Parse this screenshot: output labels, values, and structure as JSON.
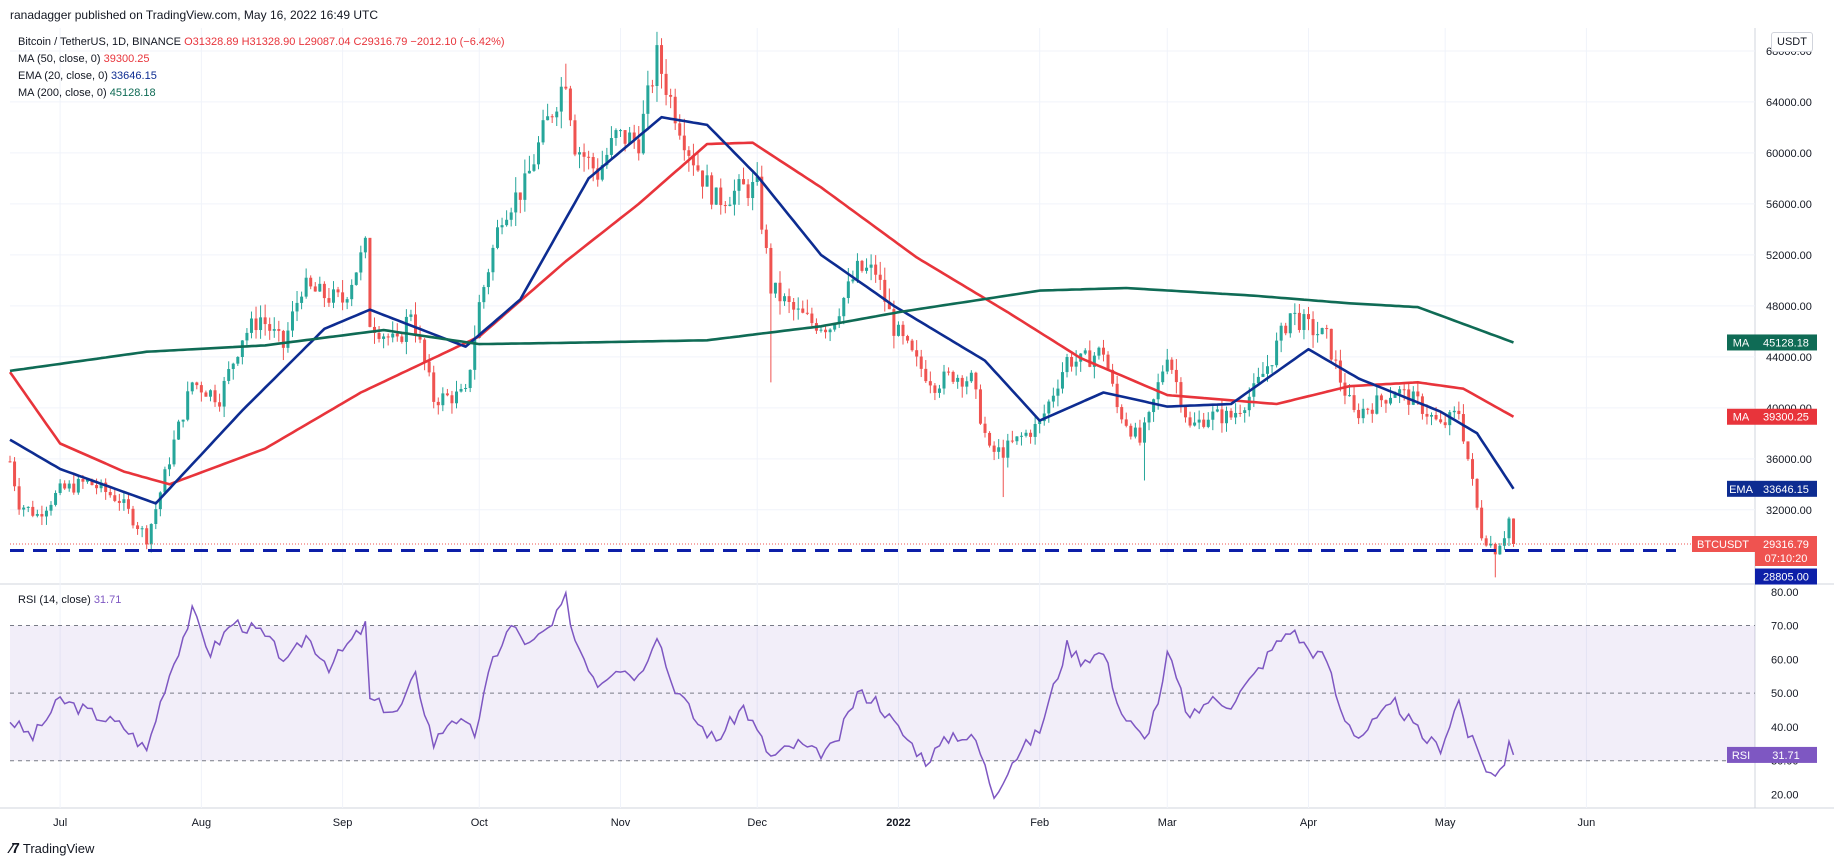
{
  "header": {
    "published": "ranadagger published on TradingView.com, May 16, 2022 16:49 UTC",
    "currency": "USDT",
    "symbol": "Bitcoin / TetherUS, 1D, BINANCE",
    "ohlc": "O31328.89 H31328.90 L29087.04 C29316.79 −2012.10 (−6.42%)",
    "indicators": [
      {
        "label": "MA (50, close, 0)",
        "value": "39300.25",
        "color": "#e8343b"
      },
      {
        "label": "EMA (20, close, 0)",
        "value": "33646.15",
        "color": "#0d2c91"
      },
      {
        "label": "MA (200, close, 0)",
        "value": "45128.18",
        "color": "#0f6b55"
      }
    ],
    "rsi_label": "RSI (14, close)",
    "rsi_value": "31.71"
  },
  "footer": {
    "brand": "TradingView"
  },
  "colors": {
    "up": "#26a69a",
    "down": "#ef5350",
    "ema20": "#0d2c91",
    "ma50": "#e8343b",
    "ma200": "#0f6b55",
    "rsi": "#7e57c2",
    "support": "#0d1fa8"
  },
  "chart_data": [
    {
      "type": "candlestick",
      "title": "",
      "y_ticks": [
        32000,
        36000,
        40000,
        44000,
        48000,
        52000,
        56000,
        60000,
        64000,
        68000
      ],
      "y_tick_labels": [
        "32000.00",
        "36000.00",
        "40000.00",
        "44000.00",
        "48000.00",
        "52000.00",
        "56000.00",
        "60000.00",
        "64000.00",
        "68000.00"
      ],
      "ylim": [
        26100,
        69800
      ],
      "x_labels": [
        {
          "label": "Jul",
          "date": "2021-07-01"
        },
        {
          "label": "Aug",
          "date": "2021-08-01"
        },
        {
          "label": "Sep",
          "date": "2021-09-01"
        },
        {
          "label": "Oct",
          "date": "2021-10-01"
        },
        {
          "label": "Nov",
          "date": "2021-11-01"
        },
        {
          "label": "Dec",
          "date": "2021-12-01"
        },
        {
          "label": "2022",
          "date": "2022-01-01"
        },
        {
          "label": "Feb",
          "date": "2022-02-01"
        },
        {
          "label": "Mar",
          "date": "2022-03-01"
        },
        {
          "label": "Apr",
          "date": "2022-04-01"
        },
        {
          "label": "May",
          "date": "2022-05-01"
        },
        {
          "label": "Jun",
          "date": "2022-06-01"
        }
      ],
      "x_range": [
        "2021-06-20",
        "2022-07-08"
      ],
      "price_path": [
        [
          "2021-06-20",
          35800
        ],
        [
          "2021-06-22",
          32500
        ],
        [
          "2021-06-26",
          31600
        ],
        [
          "2021-07-01",
          33500
        ],
        [
          "2021-07-07",
          34200
        ],
        [
          "2021-07-14",
          32800
        ],
        [
          "2021-07-20",
          29800
        ],
        [
          "2021-07-22",
          32100
        ],
        [
          "2021-07-26",
          37300
        ],
        [
          "2021-07-30",
          42000
        ],
        [
          "2021-08-05",
          40800
        ],
        [
          "2021-08-10",
          45600
        ],
        [
          "2021-08-14",
          47100
        ],
        [
          "2021-08-19",
          44800
        ],
        [
          "2021-08-23",
          49500
        ],
        [
          "2021-08-28",
          48800
        ],
        [
          "2021-09-01",
          48400
        ],
        [
          "2021-09-06",
          52600
        ],
        [
          "2021-09-07",
          46800
        ],
        [
          "2021-09-13",
          44900
        ],
        [
          "2021-09-16",
          47700
        ],
        [
          "2021-09-21",
          40700
        ],
        [
          "2021-09-28",
          41000
        ],
        [
          "2021-10-01",
          48100
        ],
        [
          "2021-10-06",
          55300
        ],
        [
          "2021-10-11",
          57400
        ],
        [
          "2021-10-15",
          61600
        ],
        [
          "2021-10-20",
          66000
        ],
        [
          "2021-10-22",
          60700
        ],
        [
          "2021-10-27",
          58400
        ],
        [
          "2021-10-31",
          61300
        ],
        [
          "2021-11-05",
          61000
        ],
        [
          "2021-11-09",
          67500
        ],
        [
          "2021-11-12",
          64200
        ],
        [
          "2021-11-16",
          60300
        ],
        [
          "2021-11-19",
          58100
        ],
        [
          "2021-11-22",
          56300
        ],
        [
          "2021-11-28",
          57200
        ],
        [
          "2021-12-01",
          57200
        ],
        [
          "2021-12-04",
          49400
        ],
        [
          "2021-12-09",
          47600
        ],
        [
          "2021-12-13",
          46700
        ],
        [
          "2021-12-17",
          46400
        ],
        [
          "2021-12-23",
          50800
        ],
        [
          "2021-12-27",
          50700
        ],
        [
          "2021-12-31",
          46300
        ],
        [
          "2022-01-05",
          43500
        ],
        [
          "2022-01-09",
          41900
        ],
        [
          "2022-01-13",
          42600
        ],
        [
          "2022-01-17",
          42200
        ],
        [
          "2022-01-21",
          36500
        ],
        [
          "2022-01-24",
          36600
        ],
        [
          "2022-01-28",
          37700
        ],
        [
          "2022-02-01",
          38700
        ],
        [
          "2022-02-07",
          43800
        ],
        [
          "2022-02-10",
          43600
        ],
        [
          "2022-02-15",
          44500
        ],
        [
          "2022-02-18",
          40000
        ],
        [
          "2022-02-23",
          37300
        ],
        [
          "2022-02-25",
          39100
        ],
        [
          "2022-03-01",
          44400
        ],
        [
          "2022-03-06",
          38400
        ],
        [
          "2022-03-10",
          39400
        ],
        [
          "2022-03-15",
          39300
        ],
        [
          "2022-03-20",
          41300
        ],
        [
          "2022-03-24",
          44000
        ],
        [
          "2022-03-28",
          47400
        ],
        [
          "2022-04-01",
          46300
        ],
        [
          "2022-04-05",
          45500
        ],
        [
          "2022-04-08",
          42200
        ],
        [
          "2022-04-11",
          39500
        ],
        [
          "2022-04-16",
          40400
        ],
        [
          "2022-04-20",
          41400
        ],
        [
          "2022-04-25",
          40400
        ],
        [
          "2022-04-30",
          38500
        ],
        [
          "2022-05-04",
          39700
        ],
        [
          "2022-05-06",
          36000
        ],
        [
          "2022-05-09",
          30100
        ],
        [
          "2022-05-12",
          28900
        ],
        [
          "2022-05-14",
          30100
        ],
        [
          "2022-05-15",
          31300
        ],
        [
          "2022-05-16",
          29316.79
        ]
      ],
      "key_lows": [
        {
          "date": "2021-12-04",
          "low": 42000
        },
        {
          "date": "2022-01-24",
          "low": 33000
        },
        {
          "date": "2022-02-24",
          "low": 34300
        },
        {
          "date": "2022-05-12",
          "low": 26700
        }
      ],
      "key_highs": [
        {
          "date": "2021-09-07",
          "high": 52900
        },
        {
          "date": "2021-10-20",
          "high": 67000
        },
        {
          "date": "2021-11-10",
          "high": 69000
        },
        {
          "date": "2022-03-29",
          "high": 48200
        }
      ],
      "series": [
        {
          "name": "MA",
          "values": [
            [
              "2021-06-20",
              42800
            ],
            [
              "2021-07-01",
              37200
            ],
            [
              "2021-07-15",
              35000
            ],
            [
              "2021-07-25",
              34000
            ],
            [
              "2021-08-15",
              36800
            ],
            [
              "2021-09-05",
              41200
            ],
            [
              "2021-10-01",
              45600
            ],
            [
              "2021-10-20",
              51500
            ],
            [
              "2021-11-05",
              56000
            ],
            [
              "2021-11-20",
              60700
            ],
            [
              "2021-11-30",
              60800
            ],
            [
              "2021-12-15",
              57300
            ],
            [
              "2022-01-05",
              51800
            ],
            [
              "2022-01-25",
              47500
            ],
            [
              "2022-02-10",
              43900
            ],
            [
              "2022-03-01",
              41000
            ],
            [
              "2022-03-25",
              40300
            ],
            [
              "2022-04-10",
              41700
            ],
            [
              "2022-04-25",
              42000
            ],
            [
              "2022-05-05",
              41500
            ],
            [
              "2022-05-16",
              39300.25
            ]
          ]
        },
        {
          "name": "EMA",
          "values": [
            [
              "2021-06-20",
              37500
            ],
            [
              "2021-07-01",
              35200
            ],
            [
              "2021-07-22",
              32500
            ],
            [
              "2021-08-10",
              39800
            ],
            [
              "2021-08-28",
              46200
            ],
            [
              "2021-09-07",
              47700
            ],
            [
              "2021-09-28",
              44800
            ],
            [
              "2021-10-10",
              48500
            ],
            [
              "2021-10-25",
              58000
            ],
            [
              "2021-11-10",
              62800
            ],
            [
              "2021-11-20",
              62200
            ],
            [
              "2021-12-01",
              58200
            ],
            [
              "2021-12-15",
              52000
            ],
            [
              "2021-12-31",
              48000
            ],
            [
              "2022-01-20",
              43700
            ],
            [
              "2022-02-01",
              39000
            ],
            [
              "2022-02-15",
              41200
            ],
            [
              "2022-03-01",
              40100
            ],
            [
              "2022-03-15",
              40300
            ],
            [
              "2022-04-01",
              44600
            ],
            [
              "2022-04-12",
              42300
            ],
            [
              "2022-04-30",
              39700
            ],
            [
              "2022-05-08",
              38000
            ],
            [
              "2022-05-16",
              33646.15
            ]
          ]
        },
        {
          "name": "MA",
          "values": [
            [
              "2021-06-20",
              42900
            ],
            [
              "2021-07-20",
              44400
            ],
            [
              "2021-08-15",
              44900
            ],
            [
              "2021-09-10",
              46100
            ],
            [
              "2021-10-01",
              45000
            ],
            [
              "2021-10-20",
              45100
            ],
            [
              "2021-11-20",
              45300
            ],
            [
              "2021-12-15",
              46400
            ],
            [
              "2022-01-01",
              47500
            ],
            [
              "2022-02-01",
              49200
            ],
            [
              "2022-02-20",
              49400
            ],
            [
              "2022-03-20",
              48800
            ],
            [
              "2022-04-10",
              48200
            ],
            [
              "2022-04-25",
              47900
            ],
            [
              "2022-05-16",
              45128.18
            ]
          ]
        }
      ],
      "support_level": 28805.0,
      "price_labels": [
        {
          "name": "MA",
          "value": "45128.18",
          "tag": "MA"
        },
        {
          "name": "MA",
          "value": "39300.25",
          "tag": "MA"
        },
        {
          "name": "EMA",
          "value": "33646.15",
          "tag": "EMA"
        },
        {
          "name": "BTCUSDT",
          "value": "29316.79",
          "extra": "07:10:20",
          "tag": "BTCUSDT"
        },
        {
          "name": "support",
          "value": "28805.00",
          "tag": ""
        }
      ]
    },
    {
      "type": "line",
      "title": "",
      "ylim": [
        16,
        82
      ],
      "y_ticks": [
        20,
        30,
        40,
        50,
        60,
        70,
        80
      ],
      "y_tick_labels": [
        "20.00",
        "30.00",
        "40.00",
        "50.00",
        "60.00",
        "70.00",
        "80.00"
      ],
      "band": [
        30,
        70
      ],
      "midline": 50,
      "series": [
        {
          "name": "RSI",
          "values": [
            [
              "2021-06-20",
              42
            ],
            [
              "2021-06-25",
              37
            ],
            [
              "2021-07-01",
              48
            ],
            [
              "2021-07-08",
              44
            ],
            [
              "2021-07-15",
              40
            ],
            [
              "2021-07-20",
              33
            ],
            [
              "2021-07-24",
              52
            ],
            [
              "2021-07-30",
              74
            ],
            [
              "2021-08-03",
              62
            ],
            [
              "2021-08-08",
              71
            ],
            [
              "2021-08-14",
              68
            ],
            [
              "2021-08-20",
              59
            ],
            [
              "2021-08-24",
              67
            ],
            [
              "2021-08-29",
              58
            ],
            [
              "2021-09-06",
              70
            ],
            [
              "2021-09-07",
              48
            ],
            [
              "2021-09-13",
              44
            ],
            [
              "2021-09-17",
              55
            ],
            [
              "2021-09-21",
              35
            ],
            [
              "2021-09-25",
              43
            ],
            [
              "2021-09-30",
              38
            ],
            [
              "2021-10-04",
              60
            ],
            [
              "2021-10-08",
              70
            ],
            [
              "2021-10-12",
              64
            ],
            [
              "2021-10-17",
              70
            ],
            [
              "2021-10-20",
              78
            ],
            [
              "2021-10-22",
              66
            ],
            [
              "2021-10-27",
              53
            ],
            [
              "2021-10-31",
              58
            ],
            [
              "2021-11-05",
              55
            ],
            [
              "2021-11-09",
              68
            ],
            [
              "2021-11-12",
              54
            ],
            [
              "2021-11-18",
              41
            ],
            [
              "2021-11-22",
              36
            ],
            [
              "2021-11-28",
              46
            ],
            [
              "2021-12-04",
              31
            ],
            [
              "2021-12-10",
              35
            ],
            [
              "2021-12-14",
              32
            ],
            [
              "2021-12-18",
              34
            ],
            [
              "2021-12-23",
              50
            ],
            [
              "2021-12-27",
              48
            ],
            [
              "2021-12-31",
              41
            ],
            [
              "2022-01-07",
              30
            ],
            [
              "2022-01-13",
              38
            ],
            [
              "2022-01-18",
              36
            ],
            [
              "2022-01-22",
              20
            ],
            [
              "2022-01-26",
              30
            ],
            [
              "2022-02-01",
              39
            ],
            [
              "2022-02-07",
              64
            ],
            [
              "2022-02-10",
              60
            ],
            [
              "2022-02-15",
              62
            ],
            [
              "2022-02-19",
              44
            ],
            [
              "2022-02-24",
              36
            ],
            [
              "2022-02-28",
              52
            ],
            [
              "2022-03-01",
              62
            ],
            [
              "2022-03-06",
              42
            ],
            [
              "2022-03-10",
              48
            ],
            [
              "2022-03-15",
              47
            ],
            [
              "2022-03-20",
              55
            ],
            [
              "2022-03-24",
              63
            ],
            [
              "2022-03-28",
              69
            ],
            [
              "2022-04-01",
              63
            ],
            [
              "2022-04-05",
              60
            ],
            [
              "2022-04-08",
              45
            ],
            [
              "2022-04-12",
              37
            ],
            [
              "2022-04-16",
              42
            ],
            [
              "2022-04-20",
              47
            ],
            [
              "2022-04-26",
              37
            ],
            [
              "2022-04-30",
              34
            ],
            [
              "2022-05-04",
              48
            ],
            [
              "2022-05-06",
              38
            ],
            [
              "2022-05-10",
              28
            ],
            [
              "2022-05-12",
              25
            ],
            [
              "2022-05-14",
              30
            ],
            [
              "2022-05-15",
              37
            ],
            [
              "2022-05-16",
              31.71
            ]
          ]
        }
      ]
    }
  ]
}
